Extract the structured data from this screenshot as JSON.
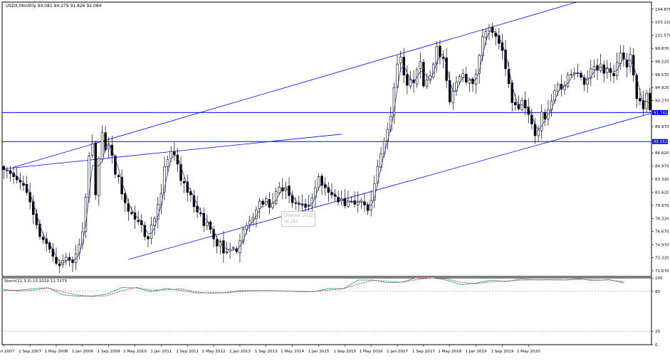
{
  "chart_data": [
    {
      "type": "candlestick",
      "instrument_header": "USDX,Monthly  94.081 94.279 91.826 92.084",
      "ylim": [
        70.95,
        105.75
      ],
      "y_ticks": [
        {
          "value": 104.87,
          "label": "104.870"
        },
        {
          "value": 103.22,
          "label": "103.220"
        },
        {
          "value": 101.57,
          "label": "101.570"
        },
        {
          "value": 99.87,
          "label": "99.870"
        },
        {
          "value": 98.22,
          "label": "98.220"
        },
        {
          "value": 96.57,
          "label": "96.570"
        },
        {
          "value": 94.92,
          "label": "94.920"
        },
        {
          "value": 93.27,
          "label": "93.270"
        },
        {
          "value": 89.97,
          "label": "89.970"
        },
        {
          "value": 86.62,
          "label": "86.620"
        },
        {
          "value": 84.97,
          "label": "84.970"
        },
        {
          "value": 83.32,
          "label": "83.320"
        },
        {
          "value": 81.62,
          "label": "81.620"
        },
        {
          "value": 79.97,
          "label": "79.970"
        },
        {
          "value": 78.32,
          "label": "78.320"
        },
        {
          "value": 76.67,
          "label": "76.670"
        },
        {
          "value": 74.97,
          "label": "74.970"
        },
        {
          "value": 73.32,
          "label": "73.320"
        },
        {
          "value": 71.67,
          "label": "71.670"
        }
      ],
      "x_ticks": [
        "1 Jan 2007",
        "1 Sep 2007",
        "1 May 2008",
        "1 Jan 2009",
        "1 Sep 2009",
        "1 May 2010",
        "1 Jan 2011",
        "1 Sep 2011",
        "1 May 2012",
        "1 Jan 2013",
        "1 Sep 2013",
        "1 May 2014",
        "1 Jan 2015",
        "1 Sep 2015",
        "1 May 2016",
        "1 Jan 2017",
        "1 Sep 2017",
        "1 May 2018",
        "1 Jan 2019",
        "1 Sep 2019",
        "1 May 2020"
      ],
      "price_labels": [
        {
          "value": 91.742,
          "label": "91.742"
        },
        {
          "value": 88.062,
          "label": "88.062"
        }
      ],
      "horizontal_lines": [
        91.742,
        88.062
      ],
      "channel_lines": [
        {
          "points": [
            [
              0,
              84.6
            ],
            [
              103,
              89.0
            ]
          ]
        },
        {
          "points": [
            [
              3,
              84.8
            ],
            [
              180,
              106.4
            ]
          ]
        },
        {
          "points": [
            [
              38,
              73.1
            ],
            [
              197,
              91.6
            ]
          ]
        },
        {
          "points": [
            [
              197,
              91.6
            ],
            [
              250,
              97.7
            ]
          ]
        }
      ],
      "tooltip": {
        "line1": "Channel 20327",
        "line2": "79.281"
      },
      "closes": [
        84.5,
        84.4,
        84.0,
        83.6,
        83.2,
        82.9,
        82.5,
        81.6,
        80.4,
        78.8,
        77.5,
        76.0,
        75.6,
        75.1,
        74.4,
        73.5,
        72.6,
        72.3,
        73.0,
        73.4,
        73.0,
        72.7,
        73.8,
        75.0,
        76.6,
        81.0,
        86.2,
        87.8,
        81.3,
        85.9,
        89.2,
        87.0,
        87.5,
        86.3,
        83.9,
        83.6,
        81.4,
        80.3,
        79.2,
        78.9,
        78.2,
        77.9,
        77.5,
        76.0,
        75.7,
        77.5,
        78.3,
        80.1,
        81.5,
        84.9,
        85.8,
        86.8,
        86.4,
        85.2,
        83.1,
        82.8,
        81.6,
        81.3,
        79.8,
        79.1,
        78.9,
        77.4,
        77.8,
        76.9,
        75.7,
        74.8,
        75.4,
        73.9,
        74.1,
        74.4,
        74.6,
        74.1,
        75.5,
        76.9,
        77.4,
        78.0,
        78.4,
        79.4,
        80.5,
        80.1,
        80.8,
        79.7,
        80.2,
        81.7,
        82.3,
        81.8,
        82.3,
        81.2,
        80.3,
        80.2,
        80.1,
        80.0,
        79.7,
        80.0,
        80.9,
        82.2,
        83.6,
        82.5,
        82.2,
        81.6,
        81.3,
        81.1,
        80.4,
        80.8,
        79.9,
        80.6,
        80.5,
        80.1,
        80.5,
        80.6,
        80.0,
        79.3,
        80.6,
        82.7,
        84.9,
        86.5,
        88.1,
        89.6,
        91.3,
        94.9,
        97.9,
        98.8,
        96.5,
        95.2,
        96.0,
        95.5,
        97.2,
        98.2,
        95.1,
        95.9,
        96.4,
        97.9,
        100.1,
        98.8,
        98.6,
        95.8,
        93.1,
        94.5,
        95.6,
        96.3,
        96.7,
        95.6,
        95.9,
        95.4,
        96.6,
        99.0,
        101.4,
        102.0,
        102.5,
        101.9,
        101.4,
        100.5,
        99.6,
        97.3,
        95.4,
        93.0,
        92.7,
        92.2,
        93.3,
        92.3,
        91.5,
        90.3,
        88.8,
        89.5,
        91.8,
        90.9,
        92.1,
        93.2,
        94.5,
        95.3,
        94.7,
        95.2,
        96.5,
        96.6,
        96.8,
        96.8,
        96.2,
        95.3,
        96.1,
        97.3,
        97.6,
        97.1,
        97.9,
        96.7,
        97.4,
        96.8,
        96.4,
        98.1,
        99.3,
        98.5,
        97.5,
        99.1,
        96.5,
        93.5,
        93.2,
        92.2,
        94.2,
        92.1
      ],
      "series": [
        {
          "name": "",
          "values": [
            81.4,
            81.6,
            83.7,
            85.2,
            74.7,
            72.6,
            72.8,
            75.9,
            85.5,
            84.9,
            79.1,
            84.1,
            81.2,
            77.6,
            77.8,
            78.0,
            81.0,
            80.8,
            80.7,
            80.1,
            79.4,
            79.5,
            84.1,
            83.7,
            96.7,
            96.7,
            92.8,
            93.8,
            100.6,
            100.2,
            96.5,
            89.8,
            92.3,
            96.6,
            94.3,
            98.3,
            96.9,
            97.2,
            96.8,
            98.6,
            95.6,
            97.6,
            92.2
          ]
        },
        {
          "name": "",
          "values": [
            82.6,
            80.5,
            81.4,
            84.9,
            79.2,
            74.3,
            72.0,
            73.3,
            80.9,
            85.6,
            81.7,
            82.1,
            83.6,
            79.0,
            76.9,
            77.6,
            79.5,
            80.6,
            81.0,
            80.2,
            79.7,
            79.5,
            81.8,
            83.6,
            90.8,
            96.4,
            94.9,
            93.4,
            97.4,
            100.2,
            98.6,
            93.1,
            91.3,
            94.2,
            95.3,
            96.6,
            97.2,
            97.0,
            96.9,
            97.9,
            97.0,
            96.7,
            94.2
          ]
        }
      ],
      "stoch_label": "Stoch(12,3,3) 13.1019 11.7273",
      "stoch_ylim": [
        0,
        100
      ],
      "stoch_levels": [
        20,
        80
      ],
      "stoch_ticks": [
        {
          "value": 100,
          "label": "100"
        },
        {
          "value": 80,
          "label": "80"
        },
        {
          "value": 20,
          "label": "20"
        },
        {
          "value": 0,
          "label": "0"
        }
      ]
    }
  ],
  "colors": {
    "up_body": "#ffffff",
    "down_body": "#000000",
    "wick": "#000000",
    "line_blue": "#0000ff",
    "ma": "#1e3aa8",
    "stoch_main": "#1fa9b0",
    "stoch_signal": "#e02020",
    "level_line": "#9a9a9a",
    "price_label_bg": "#0000ff",
    "price_label_text": "#ffffff",
    "axis_text": "#000000"
  }
}
